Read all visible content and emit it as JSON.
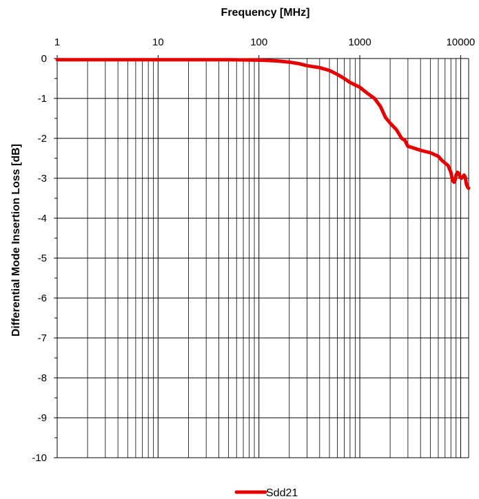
{
  "chart_data": {
    "type": "line",
    "xlabel": "Frequency [MHz]",
    "ylabel": "Differential Mode Insertion Loss [dB]",
    "x_scale": "log",
    "xlim": [
      1,
      12000
    ],
    "ylim": [
      -10,
      0
    ],
    "x_major_ticks": [
      1,
      10,
      100,
      1000,
      10000
    ],
    "x_tick_labels": [
      "1",
      "10",
      "100",
      "1000",
      "10000"
    ],
    "y_ticks": [
      0,
      -1,
      -2,
      -3,
      -4,
      -5,
      -6,
      -7,
      -8,
      -9,
      -10
    ],
    "y_tick_labels": [
      "0",
      "-1",
      "-2",
      "-3",
      "-4",
      "-5",
      "-6",
      "-7",
      "-8",
      "-9",
      "-10"
    ],
    "x_axis_position": "top",
    "grid": true,
    "legend_position": "bottom-center",
    "series": [
      {
        "name": "Sdd21",
        "color": "#e60000",
        "x": [
          1,
          10,
          50,
          100,
          150,
          200,
          250,
          300,
          400,
          500,
          600,
          700,
          800,
          1000,
          1200,
          1400,
          1600,
          1800,
          2000,
          2300,
          2600,
          2800,
          3000,
          3300,
          3600,
          4000,
          5000,
          6000,
          6500,
          7000,
          7500,
          8000,
          8300,
          8600,
          8800,
          9000,
          9300,
          9600,
          9900,
          10200,
          10500,
          10800,
          11100,
          11400,
          11700,
          12000
        ],
        "y": [
          -0.03,
          -0.03,
          -0.03,
          -0.04,
          -0.06,
          -0.09,
          -0.13,
          -0.18,
          -0.23,
          -0.3,
          -0.4,
          -0.5,
          -0.6,
          -0.72,
          -0.88,
          -1.0,
          -1.2,
          -1.48,
          -1.62,
          -1.78,
          -2.0,
          -2.05,
          -2.2,
          -2.23,
          -2.26,
          -2.3,
          -2.36,
          -2.45,
          -2.55,
          -2.62,
          -2.68,
          -2.85,
          -3.05,
          -3.1,
          -3.05,
          -2.92,
          -2.85,
          -2.88,
          -2.98,
          -3.0,
          -2.96,
          -2.92,
          -2.97,
          -3.15,
          -3.22,
          -3.25
        ]
      }
    ]
  }
}
